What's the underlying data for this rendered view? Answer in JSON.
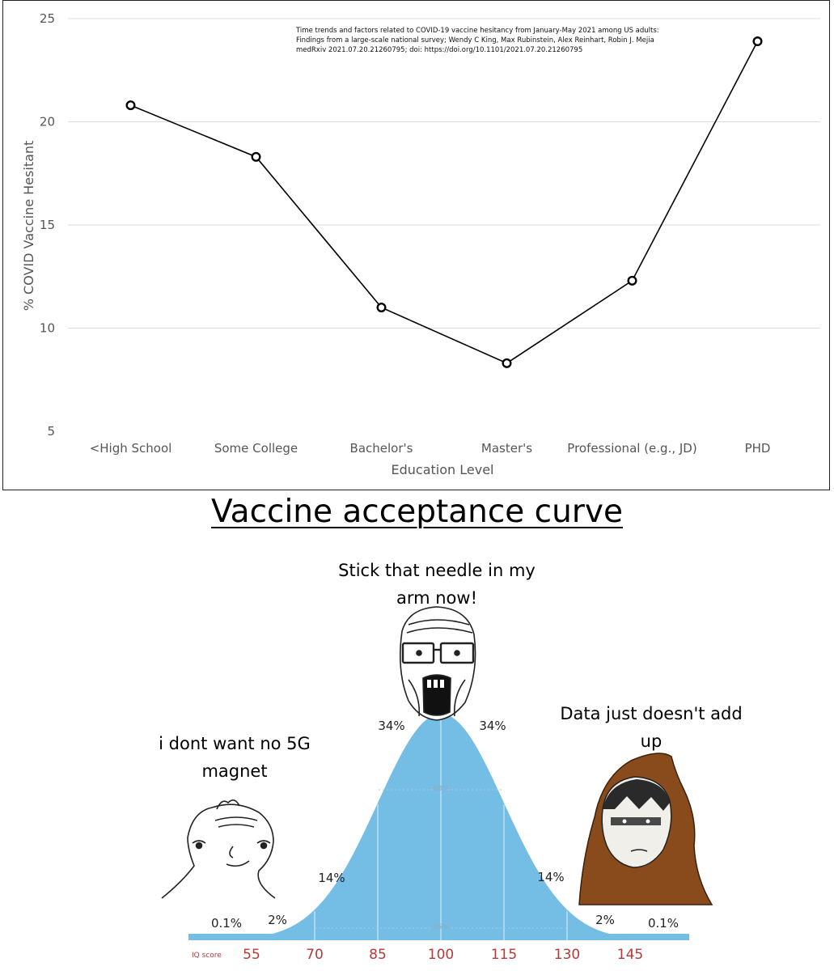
{
  "chart_data": {
    "type": "line",
    "categories": [
      "<High School",
      "Some College",
      "Bachelor's",
      "Master's",
      "Professional (e.g., JD)",
      "PHD"
    ],
    "values": [
      20.8,
      18.3,
      11.0,
      8.3,
      12.3,
      23.9
    ],
    "xlabel": "Education Level",
    "ylabel": "% COVID Vaccine Hesitant",
    "ylim": [
      5,
      25
    ],
    "yticks": [
      "5",
      "10",
      "15",
      "20",
      "25"
    ],
    "grid": "horizontal",
    "citation": [
      "Time trends and factors related to COVID-19 vaccine hesitancy from January-May 2021 among US adults:",
      "Findings from a large-scale national survey; Wendy C King, Max Rubinstein, Alex Reinhart, Robin J. Mejia",
      "medRxiv 2021.07.20.21260795; doi: https://doi.org/10.1101/2021.07.20.21260795"
    ]
  },
  "meme": {
    "title": "Vaccine acceptance curve",
    "caption_left": "i dont want no 5G magnet",
    "caption_center": "Stick that needle in my arm now!",
    "caption_right": "Data just doesn't add up",
    "percent_labels": [
      "0.1%",
      "2%",
      "14%",
      "34%",
      "34%",
      "14%",
      "2%",
      "0.1%"
    ],
    "inner_labels": [
      "68%",
      "95%"
    ],
    "iq_axis_label": "IQ score",
    "iq_scores": [
      "55",
      "70",
      "85",
      "100",
      "115",
      "130",
      "145"
    ],
    "colors": {
      "curve_fill": "#74bde4",
      "iq_text": "#b43a3a",
      "hood": "#8a4b1c"
    }
  }
}
